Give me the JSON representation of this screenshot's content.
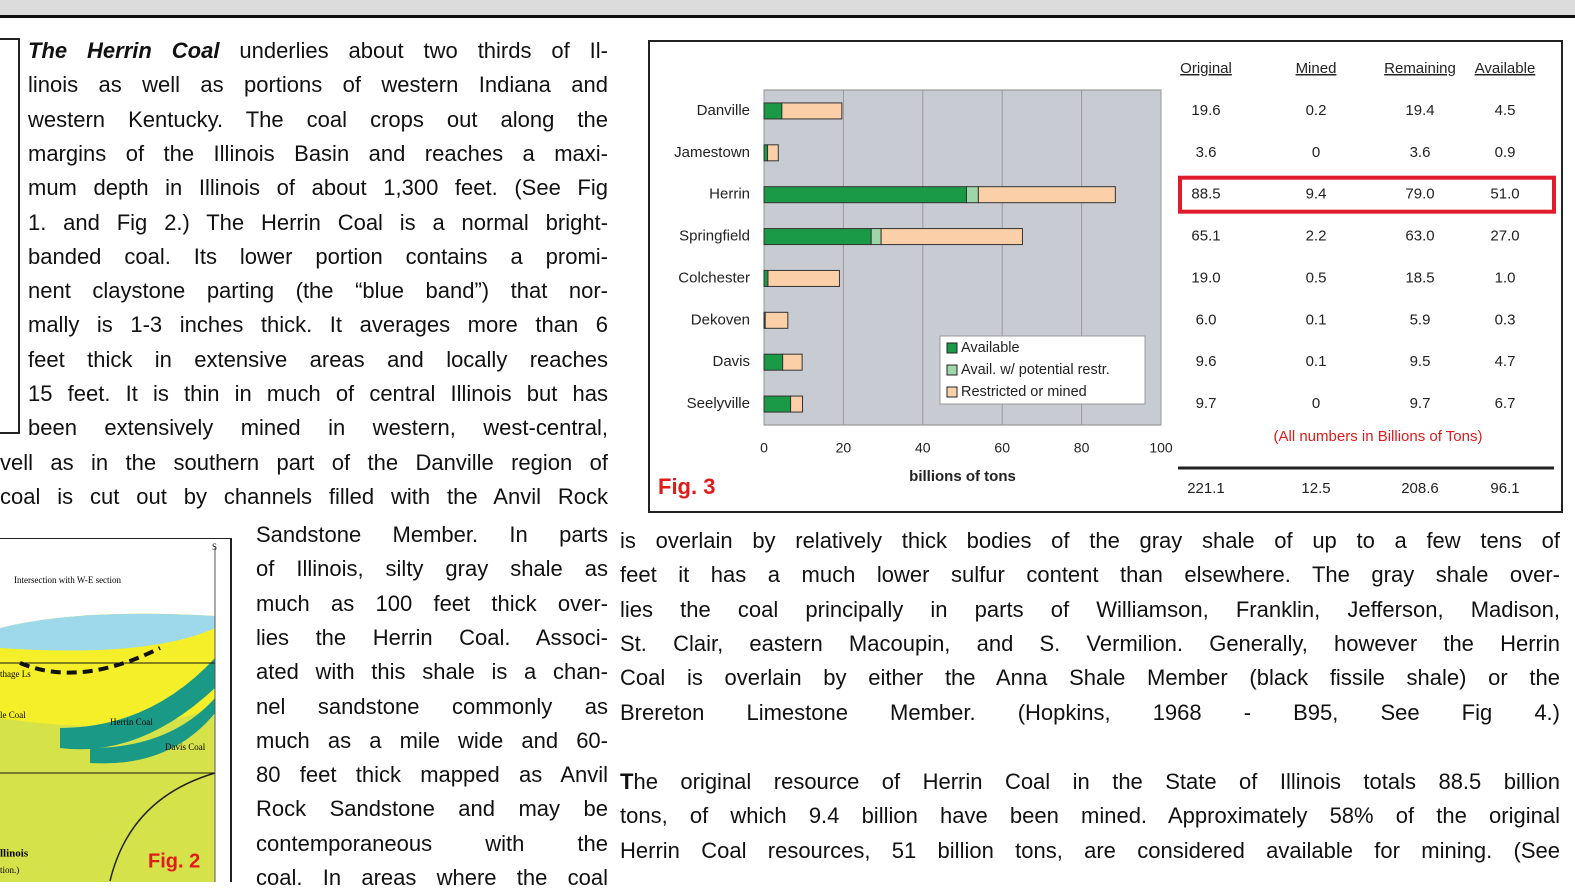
{
  "document": {
    "left_column": {
      "lead": "The Herrin Coal",
      "lines": [
        " underlies about two thirds of Il-",
        "linois as well as portions of western Indiana and",
        "western Kentucky.  The coal crops out along the",
        "margins of the Illinois Basin and reaches a maxi-",
        "mum depth in Illinois of about 1,300 feet. (See Fig",
        "1. and Fig 2.)  The Herrin Coal is a normal bright-",
        "banded coal. Its lower portion contains a promi-",
        "nent claystone parting (the “blue band”) that nor-",
        "mally is 1-3 inches thick.  It averages more than 6",
        "feet thick in extensive areas and locally reaches",
        "15 feet. It is thin in much of central Illinois but has",
        "been extensively mined in western, west-central,"
      ]
    },
    "full_lines": [
      "vell as in the southern part of the Danville region of",
      "coal is cut out by channels filled with the Anvil Rock"
    ],
    "wrap_lines": [
      "Sandstone Member. In parts",
      "of Illinois, silty gray shale as",
      "much as 100 feet thick over-",
      "lies the Herrin Coal. Associ-",
      "ated with this shale is a chan-",
      "nel sandstone commonly as",
      "much as a mile wide and 60-",
      "80 feet thick mapped as Anvil",
      "Rock Sandstone and may be",
      "contemporaneous with the",
      "coal.  In areas where the coal"
    ],
    "right_column": {
      "paragraph_1": [
        "is overlain by relatively thick bodies of the gray shale of up to a few tens of",
        "feet it has a much lower sulfur content than elsewhere.  The gray shale over-",
        "lies the coal principally in parts of  Williamson, Franklin, Jefferson, Madison,",
        "St. Clair, eastern Macoupin, and S. Vermilion. Generally, however the Herrin",
        "Coal is overlain by either the Anna Shale Member (black fissile shale) or the",
        "Brereton Limestone Member. (Hopkins, 1968 - B95, See Fig 4.)"
      ],
      "paragraph_2": {
        "lead": "T",
        "lines": [
          "he original resource of Herrin Coal in the State of Illinois totals 88.5 billion",
          "tons, of which 9.4 billion have been mined. Approximately 58% of the original",
          "Herrin Coal resources, 51 billion tons, are considered available for mining. (See"
        ]
      }
    },
    "figure_2": {
      "corner": "S",
      "section": "Intersection with W-E section",
      "ls": "thage Ls",
      "coal1": "le Coal",
      "coal2": "Herrin Coal",
      "coal3": "Davis Coal",
      "caption1": "llinois",
      "caption2": "tion.)",
      "label": "Fig. 2"
    }
  },
  "chart_data": {
    "type": "bar",
    "orientation": "horizontal",
    "stacked": true,
    "label": "Fig. 3",
    "categories": [
      "Danville",
      "Jamestown",
      "Herrin",
      "Springfield",
      "Colchester",
      "Dekoven",
      "Davis",
      "Seelyville"
    ],
    "series": [
      {
        "name": "Available",
        "color": "#1a9a47",
        "values": [
          4.5,
          0.9,
          51.0,
          27.0,
          1.0,
          0.3,
          4.7,
          6.7
        ]
      },
      {
        "name": "Avail. w/ potential restr.",
        "color": "#9fd6a8",
        "values": [
          0,
          0,
          3.0,
          2.5,
          0,
          0,
          0,
          0
        ]
      },
      {
        "name": "Restricted or mined",
        "color": "#fbd0a8",
        "values": [
          15.1,
          2.7,
          34.5,
          35.6,
          18.0,
          5.7,
          4.9,
          3.0
        ]
      }
    ],
    "xlim": [
      0,
      100
    ],
    "xticks": [
      0,
      20,
      40,
      60,
      80,
      100
    ],
    "xlabel": "billions of tons",
    "grid": true,
    "table": {
      "columns": [
        "Original",
        "Mined",
        "Remaining",
        "Available"
      ],
      "rows": [
        [
          "19.6",
          "0.2",
          "19.4",
          "4.5"
        ],
        [
          "3.6",
          "0",
          "3.6",
          "0.9"
        ],
        [
          "88.5",
          "9.4",
          "79.0",
          "51.0"
        ],
        [
          "65.1",
          "2.2",
          "63.0",
          "27.0"
        ],
        [
          "19.0",
          "0.5",
          "18.5",
          "1.0"
        ],
        [
          "6.0",
          "0.1",
          "5.9",
          "0.3"
        ],
        [
          "9.6",
          "0.1",
          "9.5",
          "4.7"
        ],
        [
          "9.7",
          "0",
          "9.7",
          "6.7"
        ]
      ],
      "note": "(All numbers in Billions of Tons)",
      "totals": [
        "221.1",
        "12.5",
        "208.6",
        "96.1"
      ],
      "highlight": "Herrin"
    }
  }
}
